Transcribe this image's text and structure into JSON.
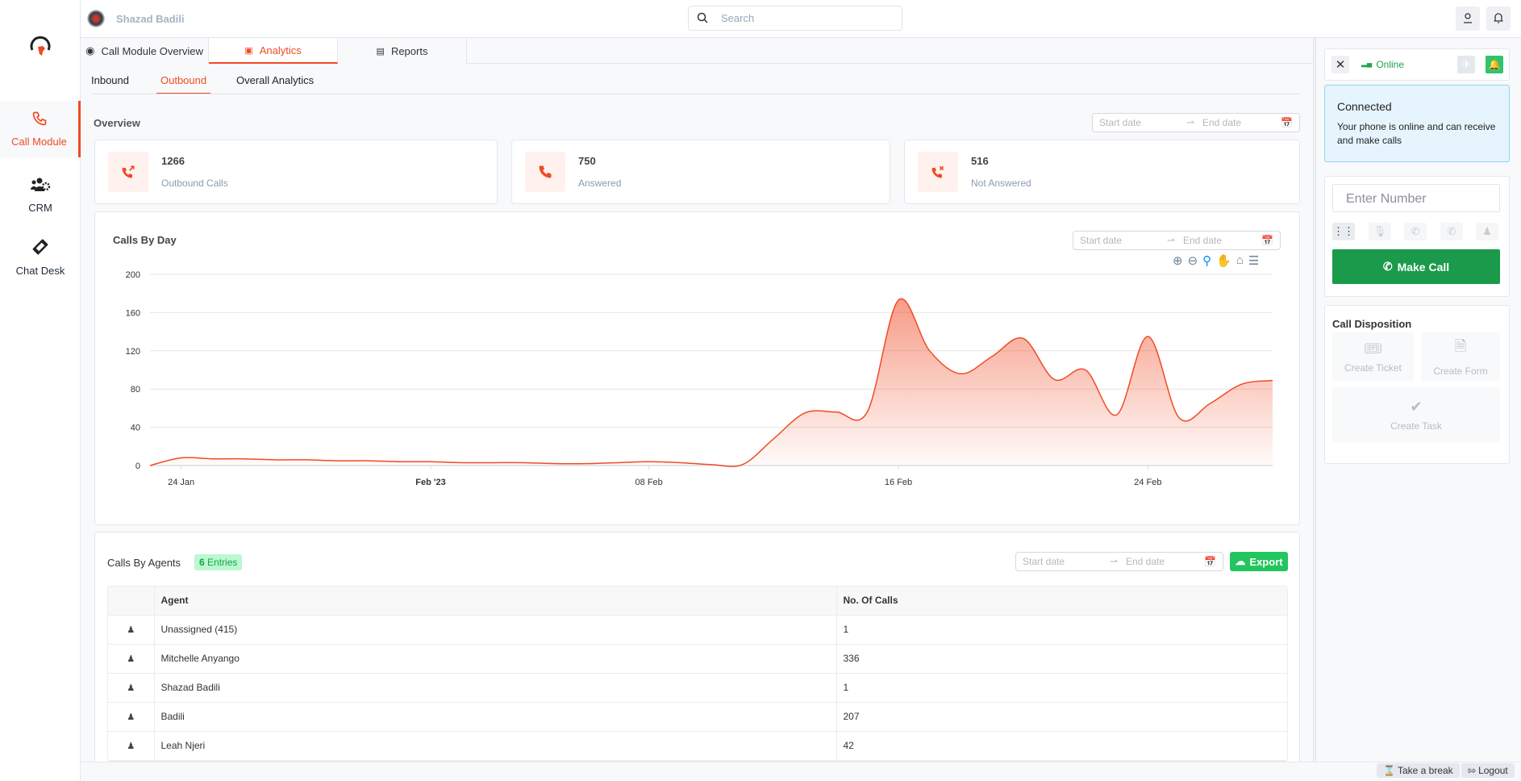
{
  "colors": {
    "accent": "#f04a24",
    "success": "#1a9a4a",
    "export": "#22c55e",
    "info_bg": "#e6f5fd"
  },
  "user": {
    "name": "Shazad Badili"
  },
  "search": {
    "placeholder": "Search"
  },
  "sidebar": {
    "items": [
      {
        "label": "Call Module",
        "icon": "phone-icon",
        "active": true
      },
      {
        "label": "CRM",
        "icon": "users-gear-icon"
      },
      {
        "label": "Chat Desk",
        "icon": "ticket-icon"
      }
    ]
  },
  "tabs": [
    {
      "label": "Call Module Overview",
      "icon": "binoculars-icon"
    },
    {
      "label": "Analytics",
      "icon": "clipboard-icon",
      "active": true
    },
    {
      "label": "Reports",
      "icon": "file-chart-icon"
    }
  ],
  "subtabs": [
    {
      "label": "Inbound"
    },
    {
      "label": "Outbound",
      "active": true
    },
    {
      "label": "Overall Analytics"
    }
  ],
  "date_picker": {
    "start": "Start date",
    "end": "End date"
  },
  "overview": {
    "title": "Overview",
    "stats": [
      {
        "value": "1266",
        "label": "Outbound Calls",
        "icon": "phone-outgoing-icon"
      },
      {
        "value": "750",
        "label": "Answered",
        "icon": "phone-icon"
      },
      {
        "value": "516",
        "label": "Not Answered",
        "icon": "phone-missed-icon"
      }
    ]
  },
  "chart_data": {
    "type": "area",
    "title": "Calls By Day",
    "ylim": [
      0,
      200
    ],
    "yticks": [
      0,
      40,
      80,
      120,
      160,
      200
    ],
    "xticks": [
      {
        "date": "2023-01-24",
        "label": "24 Jan"
      },
      {
        "date": "2023-02-01",
        "label": "Feb '23"
      },
      {
        "date": "2023-02-08",
        "label": "08 Feb"
      },
      {
        "date": "2023-02-16",
        "label": "16 Feb"
      },
      {
        "date": "2023-02-24",
        "label": "24 Feb"
      }
    ],
    "x": [
      "2023-01-23",
      "2023-01-24",
      "2023-01-25",
      "2023-01-26",
      "2023-01-27",
      "2023-01-28",
      "2023-01-29",
      "2023-01-30",
      "2023-01-31",
      "2023-02-01",
      "2023-02-02",
      "2023-02-03",
      "2023-02-04",
      "2023-02-05",
      "2023-02-06",
      "2023-02-07",
      "2023-02-08",
      "2023-02-09",
      "2023-02-10",
      "2023-02-11",
      "2023-02-12",
      "2023-02-13",
      "2023-02-14",
      "2023-02-15",
      "2023-02-16",
      "2023-02-17",
      "2023-02-18",
      "2023-02-19",
      "2023-02-20",
      "2023-02-21",
      "2023-02-22",
      "2023-02-23",
      "2023-02-24",
      "2023-02-25",
      "2023-02-26",
      "2023-02-27",
      "2023-02-28"
    ],
    "values": [
      0,
      8,
      7,
      7,
      6,
      6,
      5,
      5,
      4,
      4,
      3,
      3,
      3,
      2,
      2,
      3,
      4,
      3,
      1,
      1,
      28,
      55,
      56,
      56,
      173,
      120,
      96,
      114,
      133,
      90,
      100,
      53,
      135,
      50,
      65,
      85,
      89
    ],
    "grid": true,
    "color": "#f04a24",
    "toolbar": [
      "zoom-in-icon",
      "zoom-out-icon",
      "selection-zoom-icon",
      "pan-icon",
      "home-icon",
      "menu-icon"
    ]
  },
  "agents": {
    "title": "Calls By Agents",
    "entries_count": "6",
    "entries_label": "Entries",
    "export_label": "Export",
    "columns": [
      "Agent",
      "No. Of Calls"
    ],
    "rows": [
      {
        "agent": "Unassigned (415)",
        "calls": "1"
      },
      {
        "agent": "Mitchelle Anyango",
        "calls": "336"
      },
      {
        "agent": "Shazad Badili",
        "calls": "1"
      },
      {
        "agent": "Badili",
        "calls": "207"
      },
      {
        "agent": "Leah Njeri",
        "calls": "42"
      }
    ]
  },
  "phone": {
    "status": "Online",
    "connected_title": "Connected",
    "connected_text": "Your phone is online and can receive and make calls",
    "number_placeholder": "Enter Number",
    "make_call": "Make Call"
  },
  "disposition": {
    "title": "Call Disposition",
    "create_ticket": "Create Ticket",
    "create_form": "Create Form",
    "create_task": "Create Task"
  },
  "footer": {
    "take_break": "Take a break",
    "logout": "Logout"
  }
}
